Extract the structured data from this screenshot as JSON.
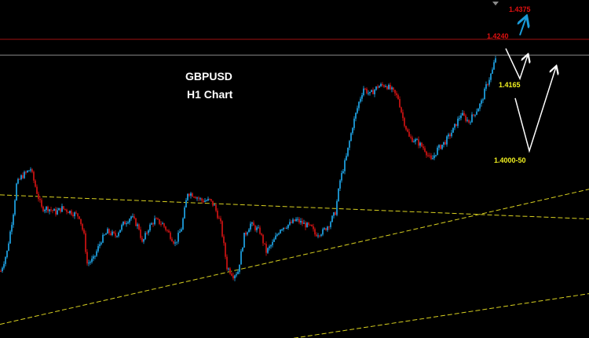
{
  "chart_data": {
    "type": "candlestick",
    "symbol": "GBPUSD",
    "timeframe": "H1 Chart",
    "colors": {
      "background": "#000000",
      "up": "#1a8cc4",
      "down": "#b01010",
      "trendline": "#d8d020",
      "resistance": "#a01010",
      "current_price": "#8a8a8a",
      "annotation": "#ffffff",
      "target_arrow": "#1a9ad8",
      "label_red": "#e01010",
      "label_yellow": "#f0f020"
    },
    "close_path": [
      [
        0,
        1.3787
      ],
      [
        4,
        1.3825
      ],
      [
        8,
        1.3902
      ],
      [
        10,
        1.3956
      ],
      [
        13,
        1.3971
      ],
      [
        16,
        1.3979
      ],
      [
        19,
        1.3987
      ],
      [
        23,
        1.3941
      ],
      [
        26,
        1.391
      ],
      [
        30,
        1.391
      ],
      [
        35,
        1.3902
      ],
      [
        39,
        1.391
      ],
      [
        45,
        1.3902
      ],
      [
        50,
        1.3894
      ],
      [
        53,
        1.3856
      ],
      [
        55,
        1.3802
      ],
      [
        59,
        1.381
      ],
      [
        64,
        1.3848
      ],
      [
        68,
        1.3864
      ],
      [
        73,
        1.3856
      ],
      [
        78,
        1.3879
      ],
      [
        83,
        1.3894
      ],
      [
        88,
        1.3871
      ],
      [
        90,
        1.3841
      ],
      [
        94,
        1.3871
      ],
      [
        98,
        1.3887
      ],
      [
        103,
        1.3879
      ],
      [
        108,
        1.3856
      ],
      [
        111,
        1.3841
      ],
      [
        115,
        1.3871
      ],
      [
        119,
        1.3941
      ],
      [
        123,
        1.3936
      ],
      [
        128,
        1.3925
      ],
      [
        133,
        1.3925
      ],
      [
        136,
        1.3914
      ],
      [
        140,
        1.3879
      ],
      [
        144,
        1.3795
      ],
      [
        148,
        1.3779
      ],
      [
        151,
        1.3787
      ],
      [
        155,
        1.3856
      ],
      [
        159,
        1.3879
      ],
      [
        165,
        1.3864
      ],
      [
        169,
        1.3825
      ],
      [
        173,
        1.3841
      ],
      [
        178,
        1.3871
      ],
      [
        184,
        1.3879
      ],
      [
        188,
        1.3887
      ],
      [
        193,
        1.3879
      ],
      [
        198,
        1.3871
      ],
      [
        200,
        1.3859
      ],
      [
        205,
        1.3864
      ],
      [
        209,
        1.3879
      ],
      [
        213,
        1.3902
      ],
      [
        216,
        1.3964
      ],
      [
        220,
        1.401
      ],
      [
        224,
        1.4071
      ],
      [
        228,
        1.4117
      ],
      [
        231,
        1.4145
      ],
      [
        235,
        1.4132
      ],
      [
        240,
        1.4148
      ],
      [
        245,
        1.4151
      ],
      [
        249,
        1.414
      ],
      [
        253,
        1.4125
      ],
      [
        256,
        1.4086
      ],
      [
        260,
        1.4048
      ],
      [
        265,
        1.404
      ],
      [
        270,
        1.4025
      ],
      [
        274,
        1.4002
      ],
      [
        278,
        1.4025
      ],
      [
        283,
        1.404
      ],
      [
        288,
        1.4063
      ],
      [
        293,
        1.4094
      ],
      [
        298,
        1.4079
      ],
      [
        303,
        1.4102
      ],
      [
        306,
        1.4117
      ],
      [
        309,
        1.4148
      ],
      [
        313,
        1.4179
      ],
      [
        316,
        1.4217
      ]
    ],
    "horizontal_lines": [
      {
        "price": 1.424,
        "role": "resistance"
      },
      {
        "price": 1.4209,
        "role": "current_price"
      }
    ],
    "trendlines": [
      {
        "from": [
          0,
          1.3936
        ],
        "to": [
          375,
          1.3889
        ]
      },
      {
        "from": [
          0,
          1.3683
        ],
        "to": [
          375,
          1.3947
        ]
      },
      {
        "from": [
          187,
          1.3656
        ],
        "to": [
          375,
          1.3743
        ]
      }
    ],
    "annotation_paths": [
      {
        "color": "annotation",
        "points": [
          [
            322,
            1.4222
          ],
          [
            331,
            1.4163
          ],
          [
            336,
            1.4209
          ]
        ]
      },
      {
        "color": "annotation",
        "points": [
          [
            328,
            1.4125
          ],
          [
            337,
            1.4022
          ],
          [
            354,
            1.4186
          ]
        ]
      },
      {
        "color": "target_arrow",
        "points": [
          [
            331,
            1.4248
          ],
          [
            335,
            1.4283
          ]
        ]
      }
    ],
    "labels": {
      "target": "1.4375",
      "resistance": "1.4240",
      "pullback": "1.4165",
      "support": "1.4000-50"
    }
  }
}
